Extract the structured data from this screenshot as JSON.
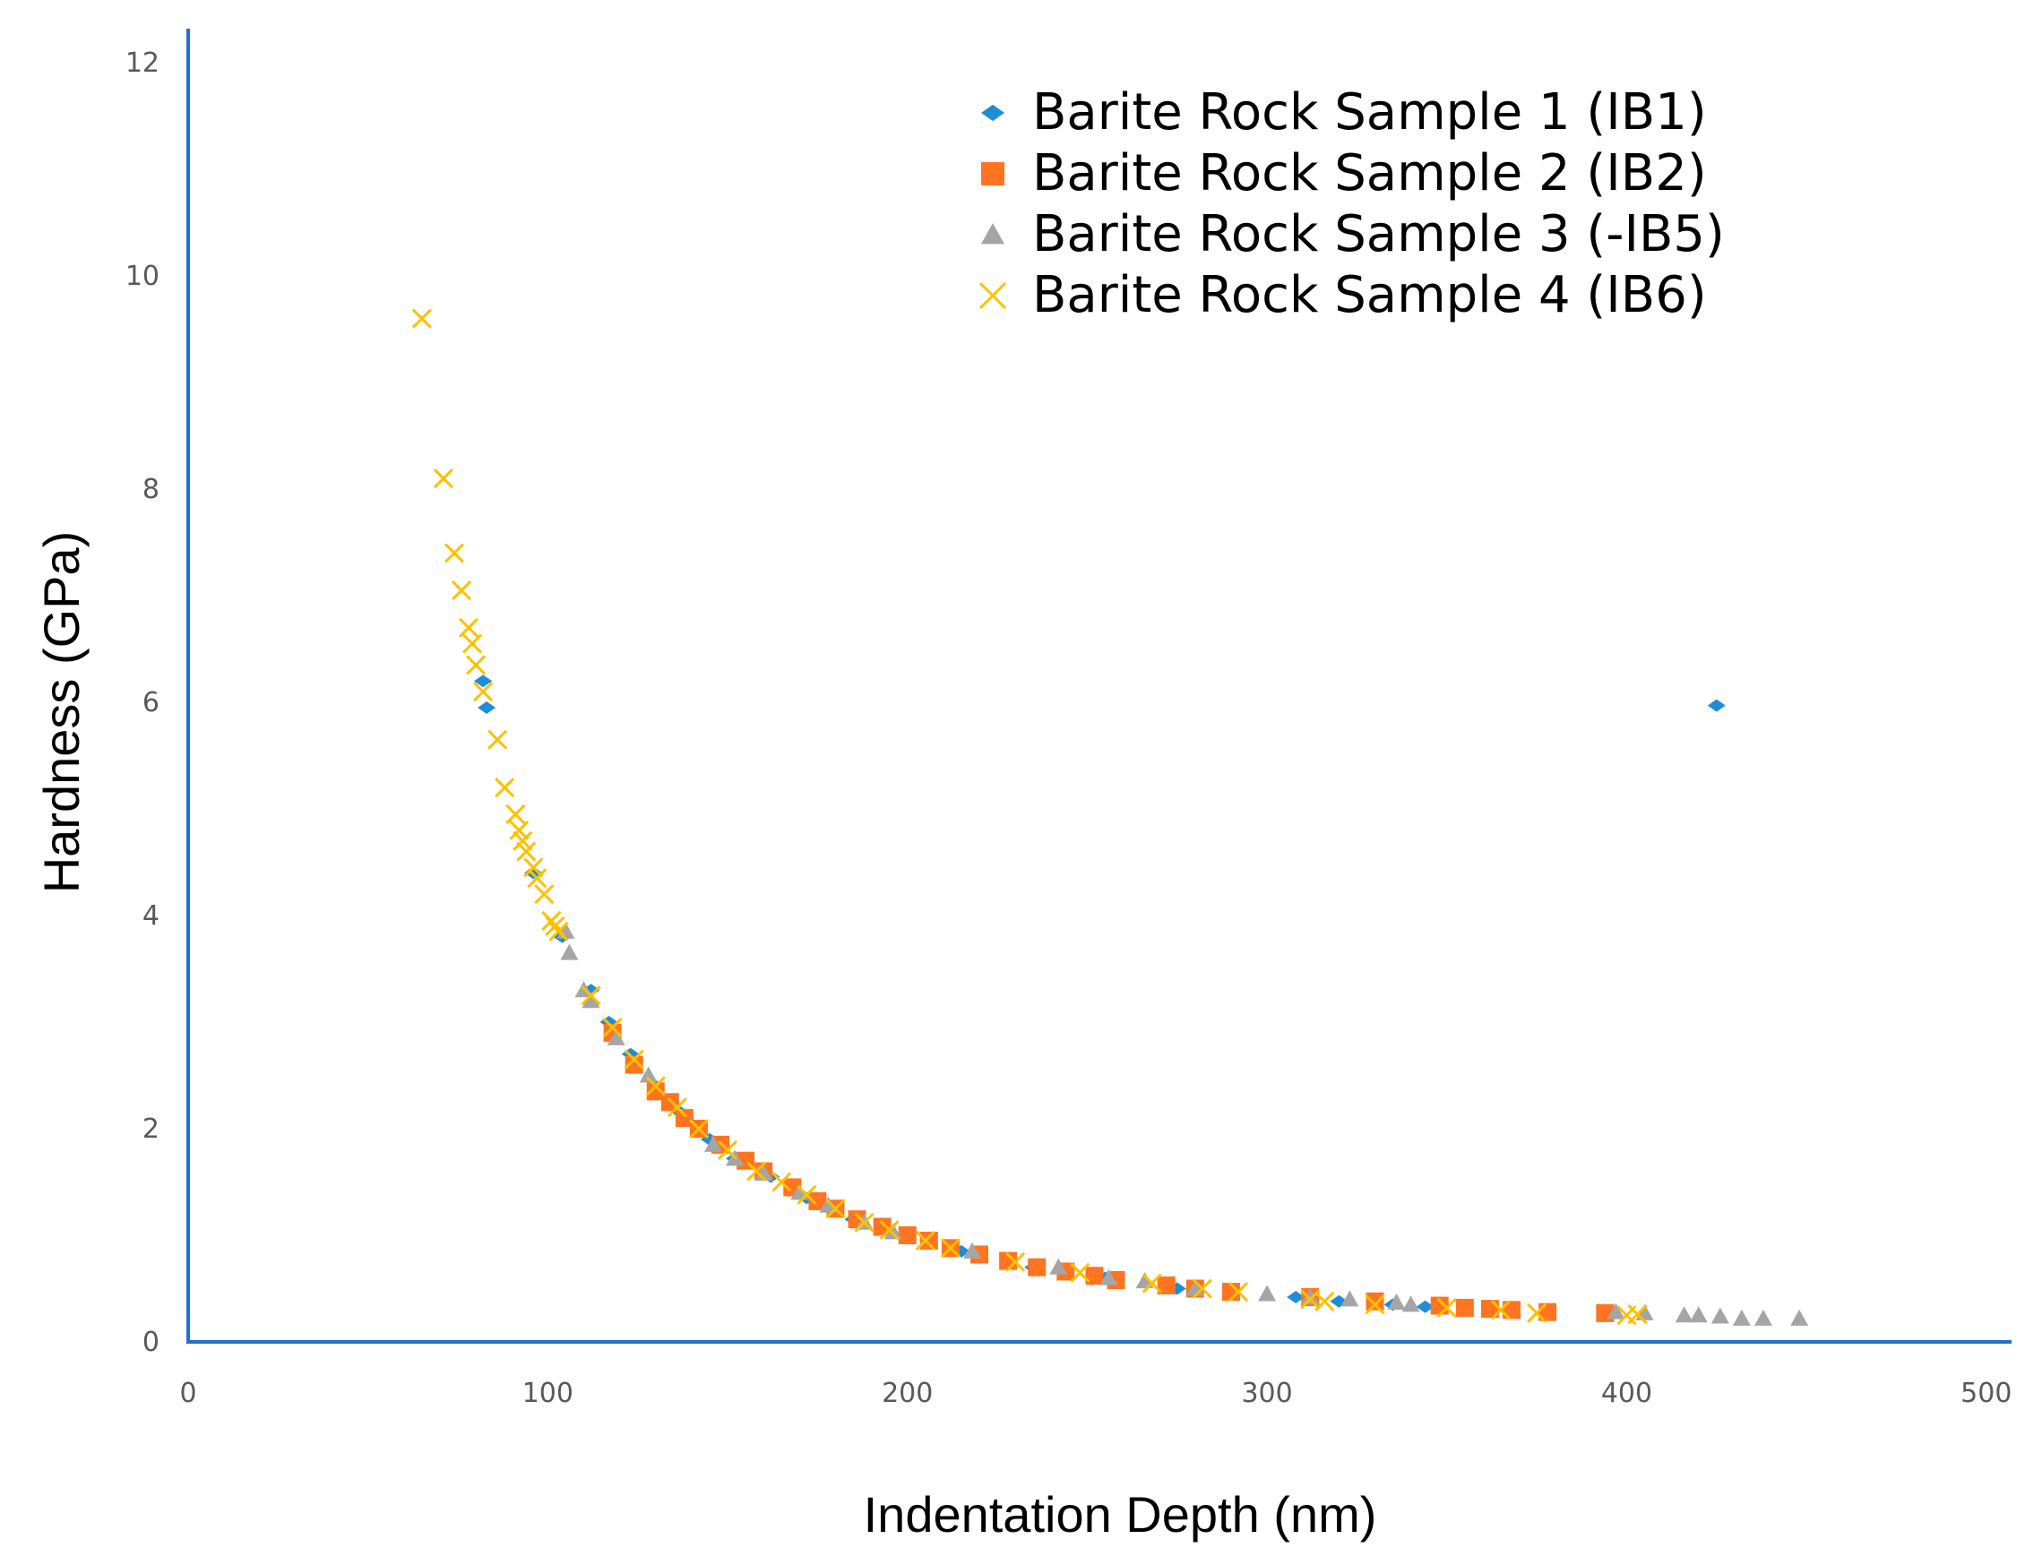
{
  "chart_data": {
    "type": "scatter",
    "title": "",
    "xlabel": "Indentation Depth (nm)",
    "ylabel": "Hardness (GPa)",
    "xlim": [
      0,
      515
    ],
    "ylim": [
      0,
      12
    ],
    "xticks": [
      0,
      100,
      200,
      300,
      400,
      500
    ],
    "yticks": [
      0,
      2,
      4,
      6,
      8,
      10,
      12
    ],
    "grid": false,
    "legend_position": "top-right",
    "series": [
      {
        "name": "Barite Rock Sample 1 (IB1)",
        "color": "#1f8dd6",
        "marker": "diamond",
        "points": [
          [
            82,
            6.2
          ],
          [
            83,
            5.95
          ],
          [
            96,
            4.4
          ],
          [
            104,
            3.8
          ],
          [
            112,
            3.3
          ],
          [
            117,
            3.0
          ],
          [
            123,
            2.7
          ],
          [
            130,
            2.4
          ],
          [
            137,
            2.15
          ],
          [
            145,
            1.9
          ],
          [
            152,
            1.72
          ],
          [
            162,
            1.55
          ],
          [
            172,
            1.35
          ],
          [
            185,
            1.15
          ],
          [
            200,
            1.0
          ],
          [
            215,
            0.85
          ],
          [
            235,
            0.7
          ],
          [
            255,
            0.6
          ],
          [
            275,
            0.5
          ],
          [
            308,
            0.42
          ],
          [
            312,
            0.4
          ],
          [
            320,
            0.38
          ],
          [
            335,
            0.35
          ],
          [
            344,
            0.33
          ],
          [
            425,
            5.97
          ]
        ]
      },
      {
        "name": "Barite Rock Sample 2 (IB2)",
        "color": "#ff7420",
        "marker": "square",
        "points": [
          [
            118,
            2.9
          ],
          [
            124,
            2.6
          ],
          [
            130,
            2.35
          ],
          [
            134,
            2.25
          ],
          [
            138,
            2.1
          ],
          [
            142,
            2.0
          ],
          [
            148,
            1.85
          ],
          [
            155,
            1.7
          ],
          [
            160,
            1.6
          ],
          [
            168,
            1.45
          ],
          [
            175,
            1.32
          ],
          [
            180,
            1.25
          ],
          [
            186,
            1.15
          ],
          [
            193,
            1.08
          ],
          [
            200,
            1.0
          ],
          [
            206,
            0.95
          ],
          [
            212,
            0.88
          ],
          [
            220,
            0.82
          ],
          [
            228,
            0.76
          ],
          [
            236,
            0.7
          ],
          [
            244,
            0.66
          ],
          [
            252,
            0.62
          ],
          [
            258,
            0.58
          ],
          [
            272,
            0.53
          ],
          [
            280,
            0.5
          ],
          [
            290,
            0.47
          ],
          [
            312,
            0.42
          ],
          [
            330,
            0.38
          ],
          [
            348,
            0.34
          ],
          [
            355,
            0.32
          ],
          [
            362,
            0.31
          ],
          [
            368,
            0.3
          ],
          [
            378,
            0.28
          ],
          [
            394,
            0.27
          ]
        ]
      },
      {
        "name": "Barite Rock Sample 3 (-IB5)",
        "color": "#a5a5a5",
        "marker": "triangle",
        "points": [
          [
            105,
            3.85
          ],
          [
            106,
            3.65
          ],
          [
            110,
            3.3
          ],
          [
            112,
            3.2
          ],
          [
            119,
            2.85
          ],
          [
            128,
            2.5
          ],
          [
            146,
            1.85
          ],
          [
            152,
            1.72
          ],
          [
            160,
            1.58
          ],
          [
            170,
            1.4
          ],
          [
            178,
            1.28
          ],
          [
            188,
            1.12
          ],
          [
            196,
            1.03
          ],
          [
            218,
            0.85
          ],
          [
            242,
            0.7
          ],
          [
            256,
            0.6
          ],
          [
            266,
            0.57
          ],
          [
            280,
            0.5
          ],
          [
            300,
            0.45
          ],
          [
            312,
            0.42
          ],
          [
            323,
            0.4
          ],
          [
            336,
            0.37
          ],
          [
            340,
            0.35
          ],
          [
            397,
            0.28
          ],
          [
            405,
            0.27
          ],
          [
            416,
            0.25
          ],
          [
            420,
            0.25
          ],
          [
            426,
            0.24
          ],
          [
            432,
            0.22
          ],
          [
            438,
            0.22
          ],
          [
            448,
            0.22
          ]
        ]
      },
      {
        "name": "Barite Rock Sample 4 (IB6)",
        "color": "#ffc000",
        "marker": "x",
        "points": [
          [
            65,
            9.6
          ],
          [
            71,
            8.1
          ],
          [
            74,
            7.4
          ],
          [
            76,
            7.05
          ],
          [
            78,
            6.7
          ],
          [
            79,
            6.55
          ],
          [
            80,
            6.35
          ],
          [
            82,
            6.1
          ],
          [
            86,
            5.65
          ],
          [
            88,
            5.2
          ],
          [
            91,
            4.95
          ],
          [
            92,
            4.8
          ],
          [
            93,
            4.7
          ],
          [
            94,
            4.6
          ],
          [
            96,
            4.45
          ],
          [
            97,
            4.35
          ],
          [
            99,
            4.2
          ],
          [
            101,
            3.95
          ],
          [
            102,
            3.9
          ],
          [
            103,
            3.85
          ],
          [
            112,
            3.25
          ],
          [
            118,
            2.95
          ],
          [
            124,
            2.65
          ],
          [
            130,
            2.4
          ],
          [
            136,
            2.2
          ],
          [
            142,
            2.0
          ],
          [
            150,
            1.8
          ],
          [
            158,
            1.6
          ],
          [
            165,
            1.5
          ],
          [
            172,
            1.38
          ],
          [
            180,
            1.25
          ],
          [
            188,
            1.12
          ],
          [
            195,
            1.05
          ],
          [
            205,
            0.95
          ],
          [
            212,
            0.88
          ],
          [
            230,
            0.75
          ],
          [
            248,
            0.65
          ],
          [
            268,
            0.55
          ],
          [
            282,
            0.5
          ],
          [
            292,
            0.47
          ],
          [
            312,
            0.4
          ],
          [
            316,
            0.38
          ],
          [
            330,
            0.35
          ],
          [
            350,
            0.32
          ],
          [
            365,
            0.3
          ],
          [
            375,
            0.27
          ],
          [
            400,
            0.25
          ],
          [
            403,
            0.26
          ]
        ]
      }
    ]
  }
}
